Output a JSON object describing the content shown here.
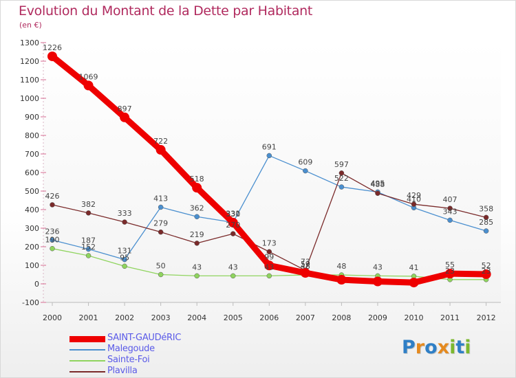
{
  "title": "Evolution du Montant de la Dette par Habitant",
  "subtitle": "(en €)",
  "logo": {
    "text": "Proxiti",
    "letters": [
      {
        "ch": "P",
        "color": "#2f7fc6"
      },
      {
        "ch": "r",
        "color": "#e58a1f"
      },
      {
        "ch": "o",
        "color": "#2f7fc6"
      },
      {
        "ch": "x",
        "color": "#e58a1f"
      },
      {
        "ch": "i",
        "color": "#7cb82f"
      },
      {
        "ch": "t",
        "color": "#2f7fc6"
      },
      {
        "ch": "i",
        "color": "#7cb82f"
      }
    ]
  },
  "chart_data": {
    "type": "line",
    "title": "Evolution du Montant de la Dette par Habitant",
    "subtitle": "(en €)",
    "xlabel": "",
    "ylabel": "",
    "x": [
      "2000",
      "2001",
      "2002",
      "2003",
      "2004",
      "2005",
      "2006",
      "2007",
      "2008",
      "2009",
      "2010",
      "2011",
      "2012"
    ],
    "ylim": [
      -100,
      1300
    ],
    "yticks": [
      -100,
      0,
      100,
      200,
      300,
      400,
      500,
      600,
      700,
      800,
      900,
      1000,
      1100,
      1200,
      1300
    ],
    "grid": false,
    "legend_position": "bottom-left",
    "series": [
      {
        "name": "SAINT-GAUDéRIC",
        "color": "#ee0000",
        "width": 9,
        "marker": 7,
        "values": [
          1226,
          1069,
          897,
          722,
          518,
          330,
          99,
          59,
          22,
          13,
          7,
          55,
          52
        ],
        "labels": [
          "1226",
          "1069",
          "897",
          "722",
          "518",
          "330",
          "99",
          "59",
          "",
          "",
          "",
          "55",
          "52"
        ]
      },
      {
        "name": "Malegoude",
        "color": "#4a8fcf",
        "width": 1.3,
        "marker": 3.5,
        "values": [
          236,
          187,
          131,
          413,
          362,
          331,
          691,
          609,
          522,
          495,
          410,
          343,
          285
        ],
        "labels": [
          "236",
          "187",
          "131",
          "413",
          "362",
          "331",
          "691",
          "609",
          "522",
          "495",
          "410",
          "343",
          "285"
        ]
      },
      {
        "name": "Sainte-Foi",
        "color": "#8fd45e",
        "width": 1.3,
        "marker": 3.5,
        "values": [
          190,
          152,
          95,
          50,
          43,
          43,
          43,
          48,
          48,
          43,
          41,
          23,
          23
        ],
        "labels": [
          "190",
          "152",
          "95",
          "50",
          "43",
          "43",
          "43",
          "48",
          "48",
          "43",
          "41",
          "23",
          "23"
        ]
      },
      {
        "name": "Plavilla",
        "color": "#7a2a2a",
        "width": 1.3,
        "marker": 3.5,
        "values": [
          426,
          382,
          333,
          279,
          219,
          270,
          173,
          73,
          597,
          488,
          429,
          407,
          358
        ],
        "labels": [
          "426",
          "382",
          "333",
          "279",
          "219",
          "270",
          "173",
          "73",
          "597",
          "488",
          "429",
          "407",
          "358"
        ]
      }
    ]
  }
}
